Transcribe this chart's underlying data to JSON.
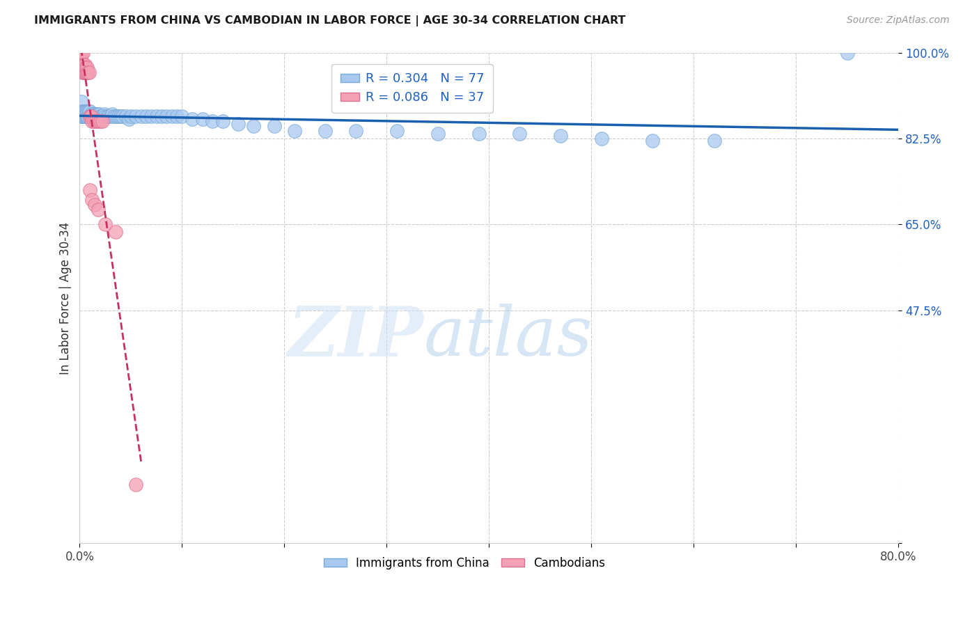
{
  "title": "IMMIGRANTS FROM CHINA VS CAMBODIAN IN LABOR FORCE | AGE 30-34 CORRELATION CHART",
  "source": "Source: ZipAtlas.com",
  "ylabel": "In Labor Force | Age 30-34",
  "xlim": [
    0.0,
    0.8
  ],
  "ylim": [
    0.0,
    1.0
  ],
  "xticks": [
    0.0,
    0.1,
    0.2,
    0.3,
    0.4,
    0.5,
    0.6,
    0.7,
    0.8
  ],
  "xticklabels": [
    "0.0%",
    "",
    "",
    "",
    "",
    "",
    "",
    "",
    "80.0%"
  ],
  "yticks": [
    0.0,
    0.475,
    0.65,
    0.825,
    1.0
  ],
  "yticklabels": [
    "",
    "47.5%",
    "65.0%",
    "82.5%",
    "100.0%"
  ],
  "china_color": "#a8c8f0",
  "china_edge": "#7aaad8",
  "cambodian_color": "#f4a0b5",
  "cambodian_edge": "#e07090",
  "trend_china_color": "#1a5fb0",
  "trend_cambodian_color": "#c83060",
  "R_china": 0.304,
  "N_china": 77,
  "R_cambodian": 0.086,
  "N_cambodian": 37,
  "watermark_zip": "ZIP",
  "watermark_atlas": "atlas",
  "background_color": "#ffffff",
  "grid_color": "#cccccc",
  "china_x": [
    0.001,
    0.001,
    0.002,
    0.002,
    0.003,
    0.003,
    0.003,
    0.004,
    0.004,
    0.004,
    0.005,
    0.005,
    0.005,
    0.006,
    0.006,
    0.006,
    0.007,
    0.007,
    0.008,
    0.008,
    0.009,
    0.01,
    0.01,
    0.011,
    0.012,
    0.013,
    0.014,
    0.015,
    0.016,
    0.017,
    0.018,
    0.019,
    0.02,
    0.022,
    0.024,
    0.025,
    0.027,
    0.028,
    0.03,
    0.032,
    0.034,
    0.036,
    0.038,
    0.04,
    0.042,
    0.045,
    0.048,
    0.05,
    0.055,
    0.06,
    0.065,
    0.07,
    0.075,
    0.08,
    0.085,
    0.09,
    0.095,
    0.1,
    0.11,
    0.12,
    0.13,
    0.14,
    0.155,
    0.17,
    0.19,
    0.21,
    0.24,
    0.27,
    0.31,
    0.35,
    0.39,
    0.43,
    0.47,
    0.51,
    0.56,
    0.62,
    0.75
  ],
  "china_y": [
    0.88,
    0.87,
    0.9,
    0.87,
    0.88,
    0.87,
    0.88,
    0.87,
    0.88,
    0.87,
    0.88,
    0.875,
    0.87,
    0.88,
    0.87,
    0.875,
    0.88,
    0.87,
    0.88,
    0.87,
    0.88,
    0.88,
    0.87,
    0.875,
    0.87,
    0.875,
    0.875,
    0.87,
    0.875,
    0.875,
    0.875,
    0.875,
    0.87,
    0.87,
    0.875,
    0.87,
    0.87,
    0.87,
    0.87,
    0.875,
    0.87,
    0.87,
    0.87,
    0.87,
    0.87,
    0.87,
    0.865,
    0.87,
    0.87,
    0.87,
    0.87,
    0.87,
    0.87,
    0.87,
    0.87,
    0.87,
    0.87,
    0.87,
    0.865,
    0.865,
    0.86,
    0.86,
    0.855,
    0.85,
    0.85,
    0.84,
    0.84,
    0.84,
    0.84,
    0.835,
    0.835,
    0.835,
    0.83,
    0.825,
    0.82,
    0.82,
    1.0
  ],
  "cambodian_x": [
    0.001,
    0.001,
    0.001,
    0.002,
    0.002,
    0.002,
    0.003,
    0.003,
    0.003,
    0.003,
    0.004,
    0.004,
    0.004,
    0.005,
    0.005,
    0.005,
    0.006,
    0.006,
    0.007,
    0.007,
    0.008,
    0.009,
    0.01,
    0.011,
    0.012,
    0.014,
    0.016,
    0.018,
    0.02,
    0.022,
    0.01,
    0.012,
    0.015,
    0.018,
    0.025,
    0.035,
    0.055
  ],
  "cambodian_y": [
    1.0,
    0.98,
    1.0,
    1.0,
    0.975,
    1.0,
    0.975,
    1.0,
    0.96,
    0.975,
    0.96,
    0.975,
    0.96,
    0.97,
    0.96,
    0.975,
    0.96,
    0.97,
    0.96,
    0.97,
    0.96,
    0.96,
    0.87,
    0.87,
    0.86,
    0.86,
    0.86,
    0.86,
    0.86,
    0.86,
    0.72,
    0.7,
    0.69,
    0.68,
    0.65,
    0.635,
    0.12
  ]
}
